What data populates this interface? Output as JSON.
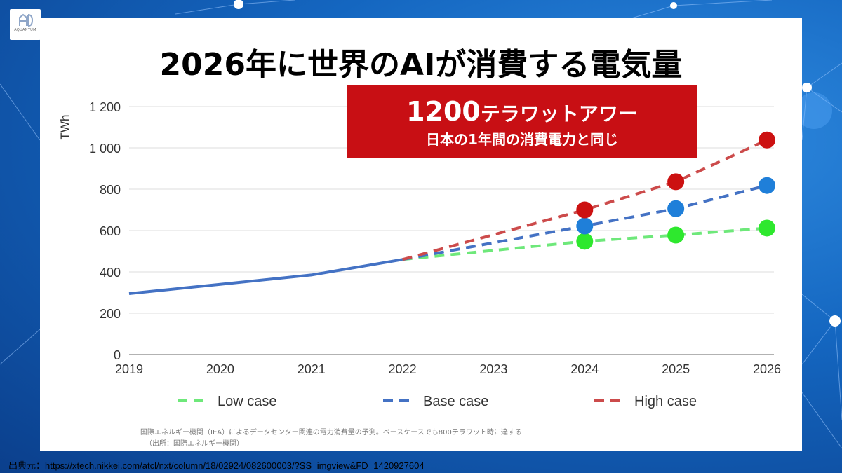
{
  "logo": {
    "text": "AQUANTUM"
  },
  "title": "2026年に世界のAIが消費する電気量",
  "banner": {
    "number": "1200",
    "unit": "テラワットアワー",
    "subtitle": "日本の1年間の消費電力と同じ"
  },
  "colors": {
    "actual": "#4472c4",
    "low": "#6ee87a",
    "base": "#4472c4",
    "high": "#cc4b4b",
    "marker_low": "#2ee82e",
    "marker_base": "#1f7fd9",
    "marker_high": "#cc1111",
    "banner": "#c80f14"
  },
  "chart_data": {
    "type": "line",
    "ylabel": "TWh",
    "ylim": [
      0,
      1200
    ],
    "y_ticks": [
      0,
      200,
      400,
      600,
      800,
      1000,
      1200
    ],
    "y_tick_labels": [
      "0",
      "200",
      "400",
      "600",
      "800",
      "1 000",
      "1 200"
    ],
    "x_ticks": [
      "2019",
      "2020",
      "2021",
      "2022",
      "2023",
      "2024",
      "2025",
      "2026"
    ],
    "grid": true,
    "legend_position": "bottom",
    "series": [
      {
        "key": "actual",
        "style": "solid",
        "points": [
          [
            2019,
            295
          ],
          [
            2020,
            340
          ],
          [
            2021,
            385
          ],
          [
            2022,
            460
          ]
        ]
      },
      {
        "key": "low",
        "name": "Low case",
        "style": "dashed",
        "points": [
          [
            2022,
            460
          ],
          [
            2024,
            548
          ],
          [
            2025,
            578
          ],
          [
            2026,
            612
          ]
        ],
        "markers": [
          [
            2024,
            548
          ],
          [
            2025,
            578
          ],
          [
            2026,
            612
          ]
        ]
      },
      {
        "key": "base",
        "name": "Base case",
        "style": "dashed",
        "points": [
          [
            2022,
            460
          ],
          [
            2024,
            622
          ],
          [
            2025,
            706
          ],
          [
            2026,
            818
          ]
        ],
        "markers": [
          [
            2024,
            622
          ],
          [
            2025,
            706
          ],
          [
            2026,
            818
          ]
        ]
      },
      {
        "key": "high",
        "name": "High case",
        "style": "dashed",
        "points": [
          [
            2022,
            460
          ],
          [
            2024,
            700
          ],
          [
            2025,
            836
          ],
          [
            2026,
            1038
          ]
        ],
        "markers": [
          [
            2024,
            700
          ],
          [
            2025,
            836
          ],
          [
            2026,
            1038
          ]
        ]
      }
    ],
    "legend": [
      {
        "key": "low",
        "label": "Low case"
      },
      {
        "key": "base",
        "label": "Base case"
      },
      {
        "key": "high",
        "label": "High case"
      }
    ]
  },
  "footnote": {
    "line1": "国際エネルギー機関（IEA）によるデータセンター関連の電力消費量の予測。ベースケースでも800テラワット時に達する",
    "line2": "（出所：国際エネルギー機関）"
  },
  "source": "出典元：https://xtech.nikkei.com/atcl/nxt/column/18/02924/082600003/?SS=imgview&FD=1420927604"
}
